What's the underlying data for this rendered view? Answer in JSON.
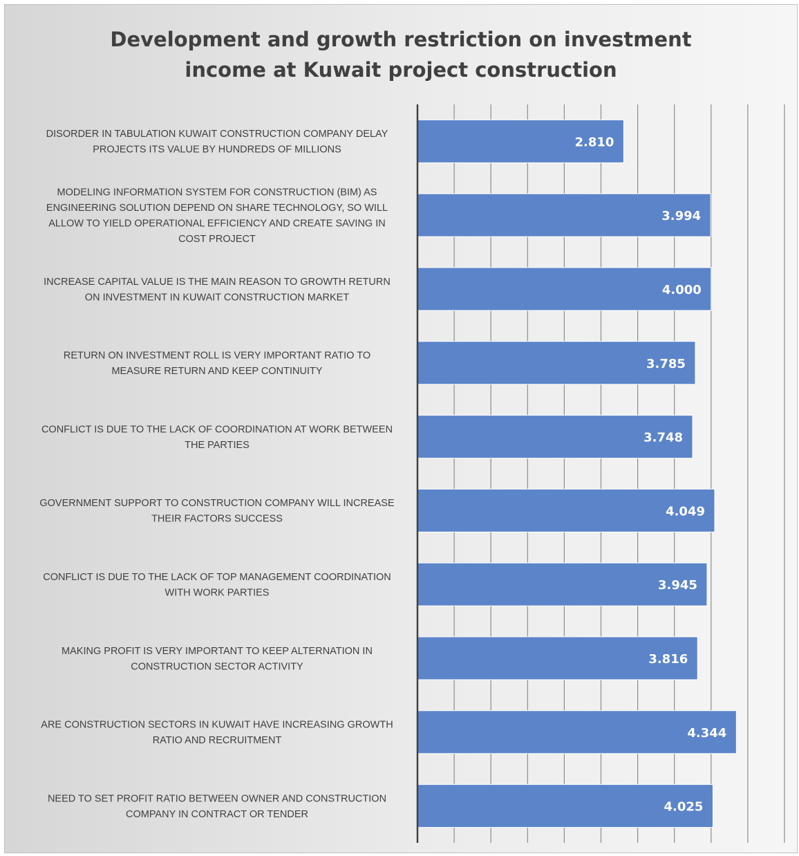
{
  "chart_data": {
    "type": "bar",
    "orientation": "horizontal",
    "title": "Development and growth restriction on investment\nincome at Kuwait project construction",
    "xlim": [
      0,
      5
    ],
    "grid": true,
    "categories": [
      "DISORDER IN TABULATION KUWAIT CONSTRUCTION COMPANY DELAY\nPROJECTS ITS VALUE BY HUNDREDS OF MILLIONS",
      "MODELING INFORMATION SYSTEM FOR CONSTRUCTION (BIM) AS\nENGINEERING SOLUTION DEPEND ON SHARE TECHNOLOGY, SO WILL\nALLOW TO YIELD OPERATIONAL EFFICIENCY AND CREATE SAVING IN\nCOST PROJECT",
      "INCREASE CAPITAL VALUE IS THE MAIN REASON TO GROWTH RETURN\nON INVESTMENT IN KUWAIT CONSTRUCTION MARKET",
      "RETURN ON INVESTMENT ROLL IS VERY IMPORTANT RATIO TO\nMEASURE RETURN AND KEEP CONTINUITY",
      "CONFLICT IS DUE TO THE LACK OF COORDINATION AT WORK BETWEEN\nTHE PARTIES",
      "GOVERNMENT SUPPORT TO CONSTRUCTION COMPANY WILL INCREASE\nTHEIR FACTORS SUCCESS",
      "CONFLICT IS DUE TO THE LACK OF TOP MANAGEMENT COORDINATION\nWITH WORK PARTIES",
      "MAKING PROFIT IS VERY IMPORTANT TO KEEP ALTERNATION IN\nCONSTRUCTION SECTOR ACTIVITY",
      "ARE CONSTRUCTION SECTORS IN KUWAIT HAVE INCREASING GROWTH\nRATIO AND RECRUITMENT",
      "NEED TO SET PROFIT RATIO BETWEEN OWNER AND CONSTRUCTION\nCOMPANY IN CONTRACT OR TENDER"
    ],
    "values": [
      2.81,
      3.994,
      4.0,
      3.785,
      3.748,
      4.049,
      3.945,
      3.816,
      4.344,
      4.025
    ],
    "value_labels": [
      "2.810",
      "3.994",
      "4.000",
      "3.785",
      "3.748",
      "4.049",
      "3.945",
      "3.816",
      "4.344",
      "4.025"
    ],
    "colors": {
      "bar": "#5b84c9",
      "bar_edge": "#ffffff",
      "grid": "#8c8c8c",
      "axis": "#404040",
      "label_text": "#404040",
      "value_text": "#ffffff",
      "title_text": "#404040"
    }
  }
}
